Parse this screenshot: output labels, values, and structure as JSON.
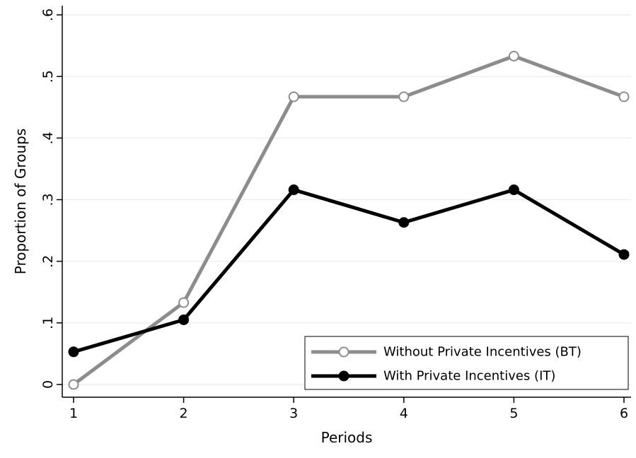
{
  "chart_data": {
    "type": "line",
    "x": [
      1,
      2,
      3,
      4,
      5,
      6
    ],
    "xlabel": "Periods",
    "ylabel": "Proportion of Groups",
    "xlim": [
      1,
      6
    ],
    "ylim": [
      0,
      0.6
    ],
    "x_ticks": [
      "1",
      "2",
      "3",
      "4",
      "5",
      "6"
    ],
    "y_ticks": [
      {
        "value": 0,
        "label": "0"
      },
      {
        "value": 0.1,
        "label": ".1"
      },
      {
        "value": 0.2,
        "label": ".2"
      },
      {
        "value": 0.3,
        "label": ".3"
      },
      {
        "value": 0.4,
        "label": ".4"
      },
      {
        "value": 0.5,
        "label": ".5"
      },
      {
        "value": 0.6,
        "label": ".6"
      }
    ],
    "grid": true,
    "legend_position": "bottom-right",
    "series": [
      {
        "name": "Without Private Incentives (BT)",
        "values": [
          0.0,
          0.133,
          0.467,
          0.467,
          0.533,
          0.467
        ],
        "color": "#8c8c8c",
        "marker": "hollow-circle"
      },
      {
        "name": "With Private Incentives (IT)",
        "values": [
          0.053,
          0.105,
          0.316,
          0.263,
          0.316,
          0.211
        ],
        "color": "#000000",
        "marker": "filled-circle"
      }
    ]
  }
}
